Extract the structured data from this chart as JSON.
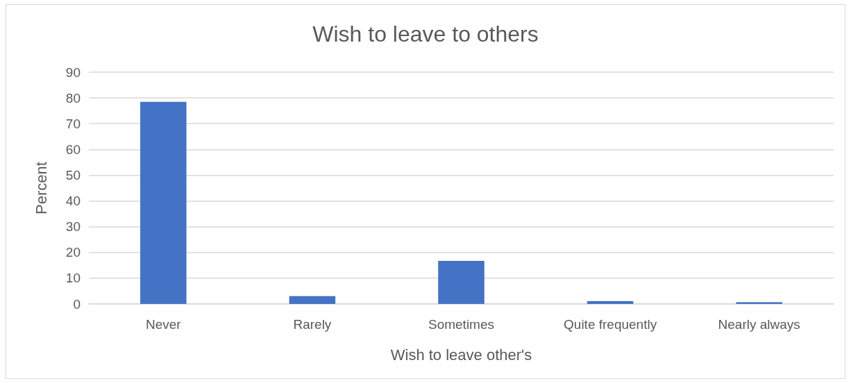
{
  "chart_data": {
    "type": "bar",
    "title": "Wish to leave to others",
    "xlabel": "Wish to leave other's",
    "ylabel": "Percent",
    "categories": [
      "Never",
      "Rarely",
      "Sometimes",
      "Quite frequently",
      "Nearly always"
    ],
    "values": [
      78.5,
      3.0,
      16.7,
      1.1,
      0.7
    ],
    "color": "#4472c4",
    "ylim": [
      0,
      90
    ],
    "yticks": [
      0,
      10,
      20,
      30,
      40,
      50,
      60,
      70,
      80,
      90
    ],
    "grid": "y"
  }
}
